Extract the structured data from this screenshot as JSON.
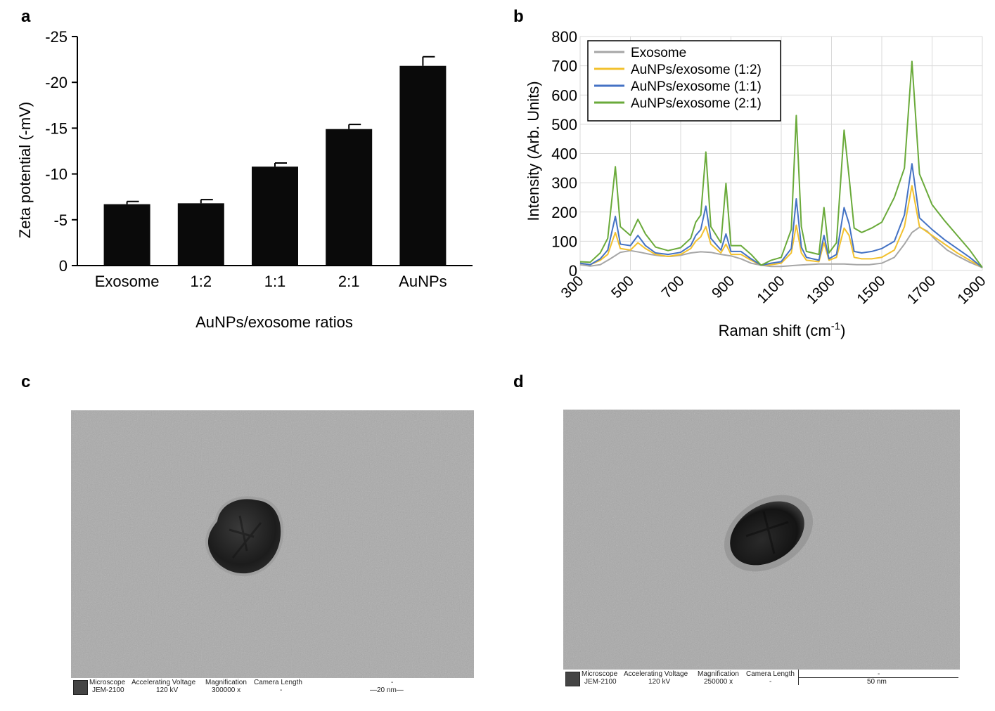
{
  "panels": {
    "a": "a",
    "b": "b",
    "c": "c",
    "d": "d"
  },
  "chart_data": [
    {
      "type": "bar",
      "panel": "a",
      "categories": [
        "Exosome",
        "1:2",
        "1:1",
        "2:1",
        "AuNPs"
      ],
      "values": [
        -6.7,
        -6.8,
        -10.8,
        -14.9,
        -21.8
      ],
      "errors": [
        0.3,
        0.4,
        0.4,
        0.5,
        1.0
      ],
      "xlabel": "AuNPs/exosome ratios",
      "ylabel": "Zeta potential (-mV)",
      "ylim": [
        0,
        -25
      ],
      "yticks": [
        0,
        -5,
        -10,
        -15,
        -20,
        -25
      ],
      "ytick_labels": [
        "0",
        "-5",
        "-10",
        "-15",
        "-20",
        "-25"
      ],
      "bar_color": "#0a0a0a",
      "grid": false
    },
    {
      "type": "line",
      "panel": "b",
      "xlabel": "Raman shift (cm",
      "xlabel_sup": "-1",
      "xlabel_end": ")",
      "ylabel": "Intensity (Arb. Units)",
      "xlim": [
        300,
        1900
      ],
      "ylim": [
        0,
        800
      ],
      "xticks": [
        300,
        500,
        700,
        900,
        1100,
        1300,
        1500,
        1700,
        1900
      ],
      "yticks": [
        0,
        100,
        200,
        300,
        400,
        500,
        600,
        700,
        800
      ],
      "grid": true,
      "legend_position": "top-left",
      "series": [
        {
          "name": "Exosome",
          "color": "#a6a6a6",
          "points": [
            [
              300,
              20
            ],
            [
              340,
              15
            ],
            [
              380,
              20
            ],
            [
              420,
              40
            ],
            [
              460,
              62
            ],
            [
              500,
              68
            ],
            [
              540,
              62
            ],
            [
              580,
              55
            ],
            [
              620,
              50
            ],
            [
              660,
              48
            ],
            [
              700,
              52
            ],
            [
              740,
              60
            ],
            [
              780,
              64
            ],
            [
              820,
              62
            ],
            [
              860,
              55
            ],
            [
              900,
              50
            ],
            [
              940,
              40
            ],
            [
              980,
              25
            ],
            [
              1020,
              18
            ],
            [
              1060,
              14
            ],
            [
              1100,
              14
            ],
            [
              1150,
              17
            ],
            [
              1200,
              20
            ],
            [
              1250,
              22
            ],
            [
              1300,
              22
            ],
            [
              1350,
              22
            ],
            [
              1400,
              20
            ],
            [
              1450,
              20
            ],
            [
              1500,
              25
            ],
            [
              1550,
              45
            ],
            [
              1590,
              90
            ],
            [
              1620,
              130
            ],
            [
              1650,
              148
            ],
            [
              1680,
              135
            ],
            [
              1720,
              100
            ],
            [
              1760,
              70
            ],
            [
              1800,
              50
            ],
            [
              1850,
              28
            ],
            [
              1900,
              10
            ]
          ]
        },
        {
          "name": "AuNPs/exosome (1:2)",
          "color": "#f2c12e",
          "points": [
            [
              300,
              25
            ],
            [
              340,
              20
            ],
            [
              380,
              35
            ],
            [
              410,
              55
            ],
            [
              440,
              130
            ],
            [
              460,
              75
            ],
            [
              500,
              70
            ],
            [
              530,
              95
            ],
            [
              560,
              75
            ],
            [
              600,
              55
            ],
            [
              650,
              48
            ],
            [
              700,
              55
            ],
            [
              740,
              75
            ],
            [
              760,
              100
            ],
            [
              780,
              115
            ],
            [
              800,
              150
            ],
            [
              820,
              90
            ],
            [
              860,
              60
            ],
            [
              880,
              90
            ],
            [
              900,
              55
            ],
            [
              940,
              55
            ],
            [
              980,
              35
            ],
            [
              1020,
              18
            ],
            [
              1060,
              20
            ],
            [
              1100,
              25
            ],
            [
              1140,
              60
            ],
            [
              1160,
              155
            ],
            [
              1180,
              60
            ],
            [
              1200,
              35
            ],
            [
              1250,
              30
            ],
            [
              1270,
              95
            ],
            [
              1290,
              35
            ],
            [
              1320,
              45
            ],
            [
              1350,
              145
            ],
            [
              1370,
              120
            ],
            [
              1390,
              45
            ],
            [
              1420,
              40
            ],
            [
              1460,
              40
            ],
            [
              1500,
              45
            ],
            [
              1550,
              70
            ],
            [
              1590,
              150
            ],
            [
              1620,
              290
            ],
            [
              1650,
              150
            ],
            [
              1700,
              120
            ],
            [
              1750,
              90
            ],
            [
              1800,
              60
            ],
            [
              1850,
              35
            ],
            [
              1900,
              10
            ]
          ]
        },
        {
          "name": "AuNPs/exosome (1:1)",
          "color": "#4472c4",
          "points": [
            [
              300,
              25
            ],
            [
              340,
              20
            ],
            [
              380,
              40
            ],
            [
              410,
              70
            ],
            [
              440,
              185
            ],
            [
              460,
              90
            ],
            [
              500,
              85
            ],
            [
              530,
              120
            ],
            [
              560,
              85
            ],
            [
              600,
              60
            ],
            [
              650,
              55
            ],
            [
              700,
              62
            ],
            [
              740,
              85
            ],
            [
              760,
              120
            ],
            [
              780,
              140
            ],
            [
              800,
              220
            ],
            [
              820,
              110
            ],
            [
              860,
              70
            ],
            [
              880,
              125
            ],
            [
              900,
              65
            ],
            [
              940,
              65
            ],
            [
              980,
              40
            ],
            [
              1020,
              18
            ],
            [
              1060,
              25
            ],
            [
              1100,
              30
            ],
            [
              1140,
              75
            ],
            [
              1160,
              245
            ],
            [
              1180,
              80
            ],
            [
              1200,
              45
            ],
            [
              1250,
              35
            ],
            [
              1270,
              120
            ],
            [
              1290,
              40
            ],
            [
              1320,
              55
            ],
            [
              1350,
              215
            ],
            [
              1370,
              160
            ],
            [
              1390,
              65
            ],
            [
              1420,
              60
            ],
            [
              1460,
              65
            ],
            [
              1500,
              75
            ],
            [
              1550,
              100
            ],
            [
              1590,
              190
            ],
            [
              1620,
              365
            ],
            [
              1650,
              180
            ],
            [
              1700,
              140
            ],
            [
              1750,
              105
            ],
            [
              1800,
              75
            ],
            [
              1850,
              45
            ],
            [
              1900,
              10
            ]
          ]
        },
        {
          "name": "AuNPs/exosome (2:1)",
          "color": "#6aaa3a",
          "points": [
            [
              300,
              30
            ],
            [
              340,
              28
            ],
            [
              380,
              60
            ],
            [
              410,
              110
            ],
            [
              440,
              355
            ],
            [
              460,
              150
            ],
            [
              500,
              120
            ],
            [
              530,
              175
            ],
            [
              560,
              125
            ],
            [
              600,
              80
            ],
            [
              650,
              68
            ],
            [
              700,
              78
            ],
            [
              740,
              110
            ],
            [
              760,
              165
            ],
            [
              780,
              190
            ],
            [
              800,
              405
            ],
            [
              820,
              150
            ],
            [
              860,
              95
            ],
            [
              880,
              298
            ],
            [
              900,
              85
            ],
            [
              940,
              85
            ],
            [
              980,
              55
            ],
            [
              1020,
              18
            ],
            [
              1060,
              35
            ],
            [
              1100,
              45
            ],
            [
              1140,
              140
            ],
            [
              1160,
              530
            ],
            [
              1180,
              150
            ],
            [
              1200,
              65
            ],
            [
              1250,
              55
            ],
            [
              1270,
              215
            ],
            [
              1290,
              60
            ],
            [
              1320,
              95
            ],
            [
              1350,
              480
            ],
            [
              1370,
              320
            ],
            [
              1390,
              145
            ],
            [
              1420,
              130
            ],
            [
              1460,
              145
            ],
            [
              1500,
              165
            ],
            [
              1550,
              250
            ],
            [
              1590,
              350
            ],
            [
              1620,
              715
            ],
            [
              1650,
              330
            ],
            [
              1700,
              225
            ],
            [
              1750,
              170
            ],
            [
              1800,
              120
            ],
            [
              1850,
              70
            ],
            [
              1900,
              10
            ]
          ]
        }
      ]
    }
  ],
  "tem_c": {
    "headers": {
      "microscope": "Microscope",
      "voltage": "Accelerating Voltage",
      "magnification": "Magnification",
      "camera": "Camera Length",
      "dash": "-"
    },
    "values": {
      "microscope": "JEM-2100",
      "voltage": "120 kV",
      "magnification": "300000 x",
      "camera": "-",
      "scale": "20 nm"
    }
  },
  "tem_d": {
    "headers": {
      "microscope": "Microscope",
      "voltage": "Accelerating Voltage",
      "magnification": "Magnification",
      "camera": "Camera Length",
      "dash": "-"
    },
    "values": {
      "microscope": "JEM-2100",
      "voltage": "120 kV",
      "magnification": "250000 x",
      "camera": "-",
      "scale": "50 nm"
    }
  }
}
